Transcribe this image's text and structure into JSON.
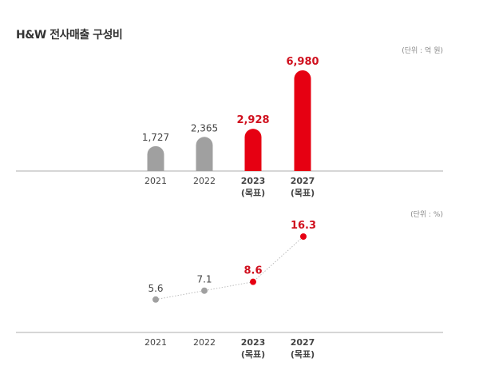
{
  "title": "H&W 전사매출 구성비",
  "chart_data": [
    {
      "type": "bar",
      "unit_label": "(단위 : 억 원)",
      "categories": [
        "2021",
        "2022",
        "2023",
        "2027"
      ],
      "category_sublabels": [
        "",
        "",
        "(목표)",
        "(목표)"
      ],
      "values": [
        1727,
        2365,
        2928,
        6980
      ],
      "value_labels": [
        "1,727",
        "2,365",
        "2,928",
        "6,980"
      ],
      "highlight": [
        false,
        false,
        true,
        true
      ],
      "ylim": [
        0,
        6980
      ],
      "grid": false
    },
    {
      "type": "line",
      "unit_label": "(단위 : %)",
      "categories": [
        "2021",
        "2022",
        "2023",
        "2027"
      ],
      "category_sublabels": [
        "",
        "",
        "(목표)",
        "(목표)"
      ],
      "values": [
        5.6,
        7.1,
        8.6,
        16.3
      ],
      "value_labels": [
        "5.6",
        "7.1",
        "8.6",
        "16.3"
      ],
      "highlight": [
        false,
        false,
        true,
        true
      ],
      "ylim": [
        0,
        16.3
      ],
      "grid": false
    }
  ],
  "colors": {
    "normal": "#a0a0a0",
    "highlight": "#e60012",
    "highlight_text": "#d0101e",
    "text": "#444444",
    "axis": "#c8c8c8"
  }
}
